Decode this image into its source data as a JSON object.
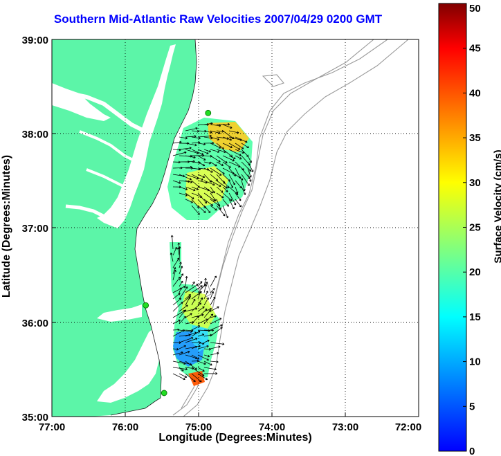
{
  "map": {
    "title": "Southern Mid-Atlantic Raw Velocities 2007/04/29 0200 GMT",
    "xlabel": "Longitude (Degrees:Minutes)",
    "ylabel": "Latitude (Degrees:Minutes)",
    "x_ticks": [
      "77:00",
      "76:00",
      "75:00",
      "74:00",
      "73:00",
      "72:00"
    ],
    "y_ticks": [
      "39:00",
      "38:00",
      "37:00",
      "36:00",
      "35:00"
    ],
    "lon_range": [
      -77,
      -72
    ],
    "lat_range": [
      35,
      39
    ],
    "grid": "dotted",
    "colors": {
      "land": "#5cf5a8",
      "water": "#ffffff",
      "bathymetry": "#9a9a9a",
      "title": "#0000ff",
      "station": "#22dd22"
    },
    "stations": [
      {
        "lon": -74.87,
        "lat": 38.22
      },
      {
        "lon": -75.72,
        "lat": 36.18
      },
      {
        "lon": -75.47,
        "lat": 35.25
      }
    ]
  },
  "colorbar": {
    "label": "Surface Velocity (cm/s)",
    "ticks": [
      "0",
      "5",
      "10",
      "15",
      "20",
      "25",
      "30",
      "35",
      "40",
      "45",
      "50"
    ],
    "min": 0,
    "max": 50,
    "colormap": "jet"
  }
}
